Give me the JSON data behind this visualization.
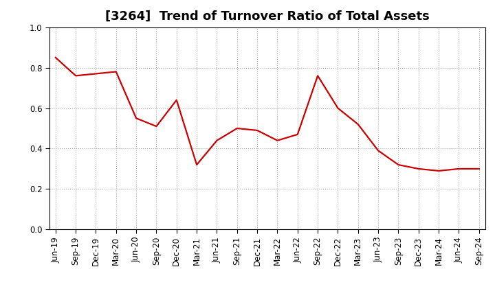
{
  "title": "[3264]  Trend of Turnover Ratio of Total Assets",
  "line_color": "#CC0000",
  "background_color": "#FFFFFF",
  "grid_color": "#AAAAAA",
  "ylim": [
    0.0,
    1.0
  ],
  "yticks": [
    0.0,
    0.2,
    0.4,
    0.6,
    0.8,
    1.0
  ],
  "labels": [
    "Jun-19",
    "Sep-19",
    "Dec-19",
    "Mar-20",
    "Jun-20",
    "Sep-20",
    "Dec-20",
    "Mar-21",
    "Jun-21",
    "Sep-21",
    "Dec-21",
    "Mar-22",
    "Jun-22",
    "Sep-22",
    "Dec-22",
    "Mar-23",
    "Jun-23",
    "Sep-23",
    "Dec-23",
    "Mar-24",
    "Jun-24",
    "Sep-24"
  ],
  "values": [
    0.85,
    0.76,
    0.77,
    0.78,
    0.55,
    0.51,
    0.64,
    0.32,
    0.44,
    0.5,
    0.49,
    0.44,
    0.47,
    0.76,
    0.6,
    0.52,
    0.39,
    0.32,
    0.3,
    0.29,
    0.3,
    0.3
  ],
  "title_fontsize": 13,
  "tick_fontsize": 8.5,
  "line_width": 1.6,
  "spine_color": "#000000",
  "grid_linestyle": ":",
  "grid_linewidth": 0.8
}
